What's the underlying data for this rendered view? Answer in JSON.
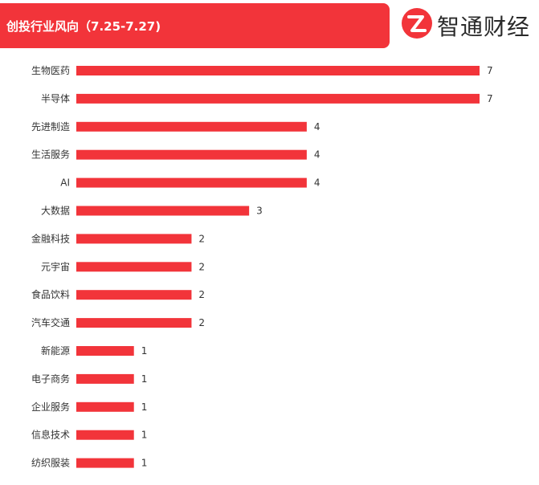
{
  "header": {
    "title": "创投行业风向（7.25-7.27)",
    "brand": "智通财经"
  },
  "colors": {
    "accent": "#f2343a",
    "text": "#333333"
  },
  "chart_data": {
    "type": "bar",
    "orientation": "horizontal",
    "title": "创投行业风向（7.25-7.27)",
    "categories": [
      "生物医药",
      "半导体",
      "先进制造",
      "生活服务",
      "AI",
      "大数据",
      "金融科技",
      "元宇宙",
      "食品饮料",
      "汽车交通",
      "新能源",
      "电子商务",
      "企业服务",
      "信息技术",
      "纺织服装"
    ],
    "values": [
      7,
      7,
      4,
      4,
      4,
      3,
      2,
      2,
      2,
      2,
      1,
      1,
      1,
      1,
      1
    ],
    "xlim": [
      0,
      7
    ],
    "grid": false,
    "data_labels": true,
    "bar_color": "#f2343a"
  }
}
